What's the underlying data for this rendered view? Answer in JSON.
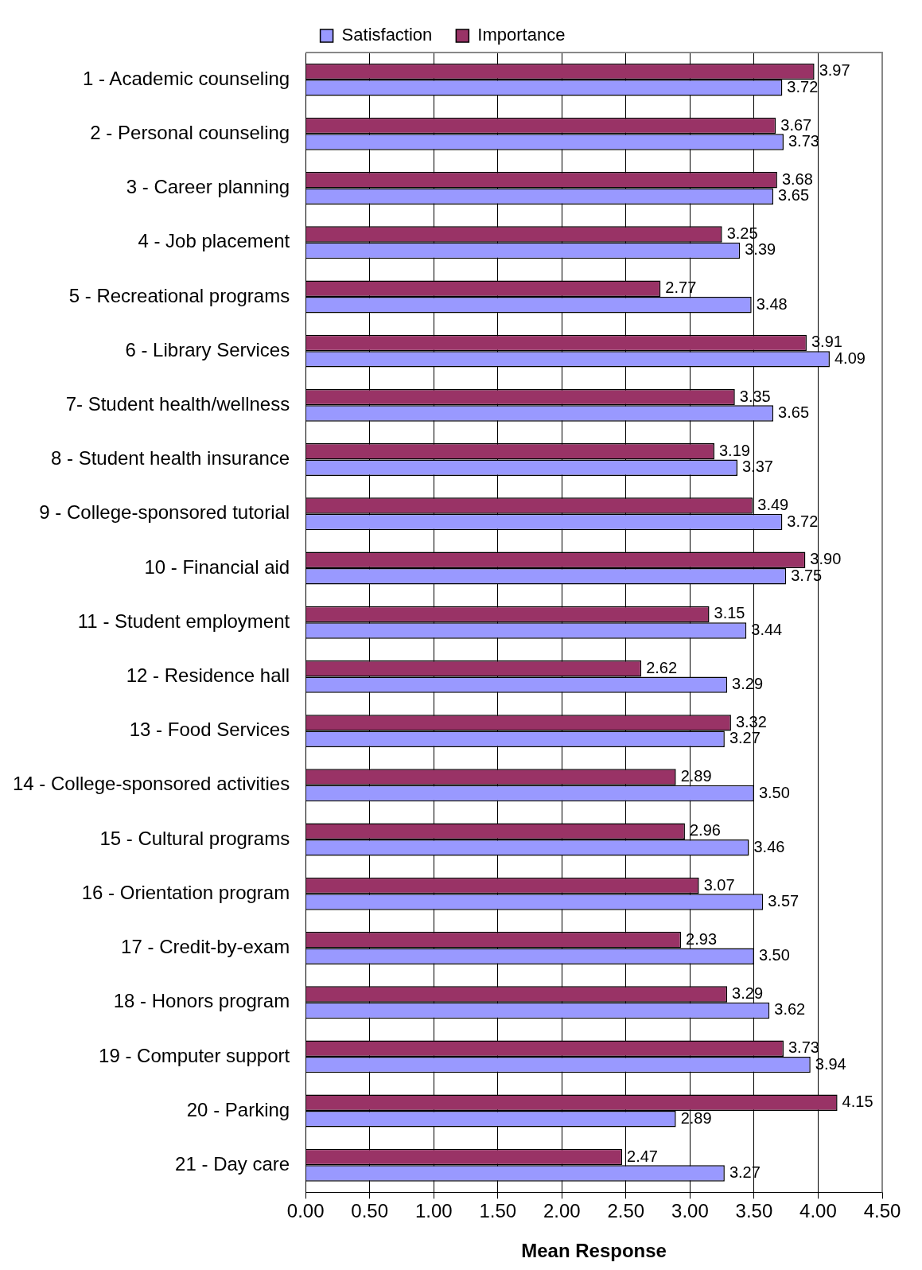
{
  "chart_data": {
    "type": "bar",
    "orientation": "horizontal",
    "xlabel": "Mean Response",
    "categories": [
      "1 - Academic counseling",
      "2 - Personal counseling",
      "3 - Career planning",
      "4 - Job placement",
      "5 - Recreational programs",
      "6 - Library Services",
      "7- Student health/wellness",
      "8 - Student health insurance",
      "9 - College-sponsored tutorial",
      "10 - Financial aid",
      "11 - Student employment",
      "12 - Residence hall",
      "13 - Food Services",
      "14 - College-sponsored activities",
      "15 - Cultural programs",
      "16 - Orientation program",
      "17 - Credit-by-exam",
      "18 - Honors program",
      "19 - Computer support",
      "20 - Parking",
      "21 - Day care"
    ],
    "series": [
      {
        "name": "Satisfaction",
        "color": "#9999ff",
        "values": [
          3.72,
          3.73,
          3.65,
          3.39,
          3.48,
          4.09,
          3.65,
          3.37,
          3.72,
          3.75,
          3.44,
          3.29,
          3.27,
          3.5,
          3.46,
          3.57,
          3.5,
          3.62,
          3.94,
          2.89,
          3.27
        ],
        "value_labels": [
          "3.72",
          "3.73",
          "3.65",
          "3.39",
          "3.48",
          "4.09",
          "3.65",
          "3.37",
          "3.72",
          "3.75",
          "3.44",
          "3.29",
          "3.27",
          "3.50",
          "3.46",
          "3.57",
          "3.50",
          "3.62",
          "3.94",
          "2.89",
          "3.27"
        ]
      },
      {
        "name": "Importance",
        "color": "#993366",
        "values": [
          3.97,
          3.67,
          3.68,
          3.25,
          2.77,
          3.91,
          3.35,
          3.19,
          3.49,
          3.9,
          3.15,
          2.62,
          3.32,
          2.89,
          2.96,
          3.07,
          2.93,
          3.29,
          3.73,
          4.15,
          2.47
        ],
        "value_labels": [
          "3.97",
          "3.67",
          "3.68",
          "3.25",
          "2.77",
          "3.91",
          "3.35",
          "3.19",
          "3.49",
          "3.90",
          "3.15",
          "2.62",
          "3.32",
          "2.89",
          "2.96",
          "3.07",
          "2.93",
          "3.29",
          "3.73",
          "4.15",
          "2.47"
        ]
      }
    ],
    "xlim": [
      0,
      4.5
    ],
    "xticks": [
      {
        "value": 0,
        "label": "0.00"
      },
      {
        "value": 0.5,
        "label": "0.50"
      },
      {
        "value": 1,
        "label": "1.00"
      },
      {
        "value": 1.5,
        "label": "1.50"
      },
      {
        "value": 2,
        "label": "2.00"
      },
      {
        "value": 2.5,
        "label": "2.50"
      },
      {
        "value": 3,
        "label": "3.00"
      },
      {
        "value": 3.5,
        "label": "3.50"
      },
      {
        "value": 4,
        "label": "4.00"
      },
      {
        "value": 4.5,
        "label": "4.50"
      }
    ],
    "grid": "x",
    "legend": "top"
  }
}
